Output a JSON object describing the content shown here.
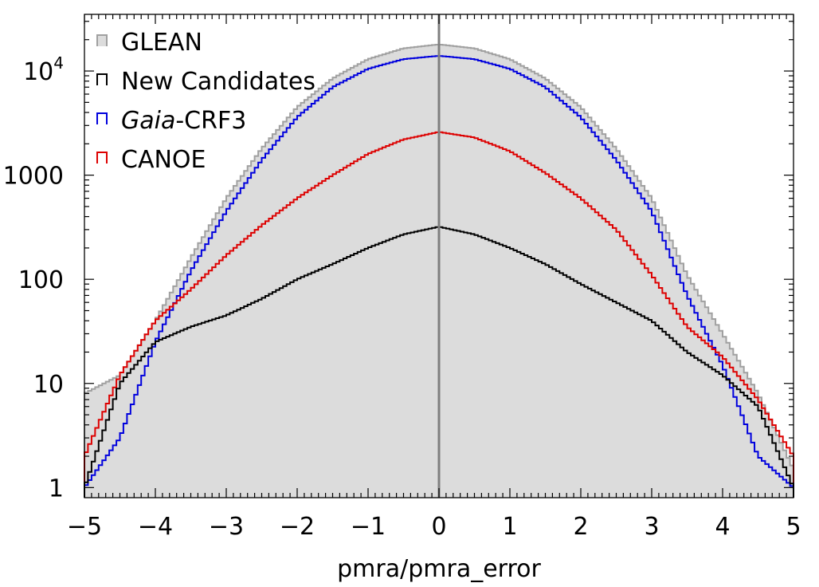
{
  "chart_data": {
    "type": "histogram",
    "title": "",
    "xlabel": "pmra/pmra_error",
    "ylabel": "",
    "xlim": [
      -5,
      5
    ],
    "ylim": [
      0.8,
      35000
    ],
    "yscale": "log",
    "x_ticks": [
      "−5",
      "−4",
      "−3",
      "−2",
      "−1",
      "0",
      "1",
      "2",
      "3",
      "4",
      "5"
    ],
    "y_ticks": [
      {
        "value": 1,
        "label": "1"
      },
      {
        "value": 10,
        "label": "10"
      },
      {
        "value": 100,
        "label": "100"
      },
      {
        "value": 1000,
        "label": "1000"
      },
      {
        "value": 10000,
        "label_base": "10",
        "label_exp": "4"
      }
    ],
    "bin_width": 0.05,
    "vertical_line_x": 0,
    "legend": {
      "placement": "top-left",
      "entries": [
        {
          "name": "GLEAN",
          "italic_part": "",
          "text": "GLEAN"
        },
        {
          "name": "New Candidates",
          "italic_part": "",
          "text": "New Candidates"
        },
        {
          "name": "Gaia-CRF3",
          "italic_part": "Gaia",
          "text": "-CRF3"
        },
        {
          "name": "CANOE",
          "italic_part": "",
          "text": "CANOE"
        }
      ]
    },
    "series": [
      {
        "name": "GLEAN",
        "color": "#a0a0a0",
        "fill": "#dcdcdc",
        "x": [
          -5.0,
          -4.5,
          -4.0,
          -3.5,
          -3.0,
          -2.5,
          -2.0,
          -1.5,
          -1.0,
          -0.5,
          0.0,
          0.5,
          1.0,
          1.5,
          2.0,
          2.5,
          3.0,
          3.5,
          4.0,
          4.5,
          5.0
        ],
        "values": [
          8,
          12,
          40,
          160,
          600,
          1800,
          4500,
          8500,
          13000,
          16500,
          18000,
          16500,
          13000,
          8500,
          4500,
          1800,
          600,
          110,
          30,
          8,
          1.5
        ]
      },
      {
        "name": "Gaia-CRF3",
        "color": "#0000dd",
        "x": [
          -5.0,
          -4.5,
          -4.0,
          -3.5,
          -3.0,
          -2.5,
          -2.0,
          -1.5,
          -1.0,
          -0.5,
          0.0,
          0.5,
          1.0,
          1.5,
          2.0,
          2.5,
          3.0,
          3.5,
          4.0,
          4.5,
          5.0
        ],
        "values": [
          1,
          3,
          25,
          120,
          450,
          1400,
          3600,
          7000,
          10500,
          13000,
          14000,
          13000,
          10500,
          7000,
          3600,
          1400,
          450,
          70,
          15,
          2,
          1
        ]
      },
      {
        "name": "CANOE",
        "color": "#dd0000",
        "x": [
          -5.0,
          -4.5,
          -4.0,
          -3.5,
          -3.0,
          -2.5,
          -2.0,
          -1.5,
          -1.0,
          -0.5,
          0.0,
          0.5,
          1.0,
          1.5,
          2.0,
          2.5,
          3.0,
          3.5,
          4.0,
          4.5,
          5.0
        ],
        "values": [
          2,
          12,
          40,
          80,
          170,
          330,
          600,
          1000,
          1600,
          2200,
          2600,
          2300,
          1700,
          1050,
          600,
          300,
          110,
          35,
          18,
          7,
          2
        ]
      },
      {
        "name": "New Candidates",
        "color": "#000000",
        "x": [
          -5.0,
          -4.5,
          -4.0,
          -3.5,
          -3.0,
          -2.5,
          -2.0,
          -1.5,
          -1.0,
          -0.5,
          0.0,
          0.5,
          1.0,
          1.5,
          2.0,
          2.5,
          3.0,
          3.5,
          4.0,
          4.5,
          5.0
        ],
        "values": [
          1,
          10,
          25,
          35,
          45,
          65,
          100,
          140,
          200,
          270,
          320,
          270,
          200,
          140,
          90,
          60,
          40,
          20,
          12,
          6,
          1
        ]
      }
    ]
  }
}
